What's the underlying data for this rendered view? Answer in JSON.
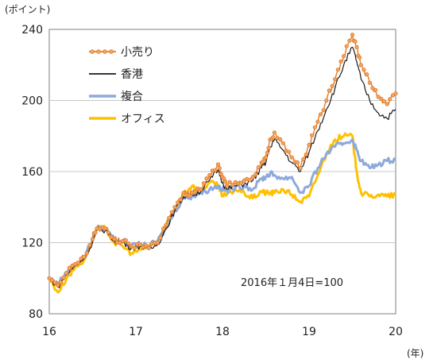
{
  "chart_data": {
    "type": "line",
    "y_unit_label": "(ポイント)",
    "x_unit_label": "(年)",
    "annotation": "2016年１月4日=100",
    "xlim": [
      16,
      20
    ],
    "ylim": [
      80,
      240
    ],
    "x_ticks": [
      "16",
      "17",
      "18",
      "19",
      "20"
    ],
    "y_ticks": [
      "80",
      "120",
      "160",
      "200",
      "240"
    ],
    "grid": "horizontal",
    "legend_position": "top-left",
    "series": [
      {
        "name": "小売り",
        "color": "#E07B28",
        "marker": "circle",
        "points": [
          [
            16.0,
            100
          ],
          [
            16.1,
            96
          ],
          [
            16.2,
            103
          ],
          [
            16.3,
            108
          ],
          [
            16.4,
            112
          ],
          [
            16.5,
            122
          ],
          [
            16.55,
            128
          ],
          [
            16.65,
            128
          ],
          [
            16.75,
            122
          ],
          [
            16.85,
            121
          ],
          [
            16.95,
            118
          ],
          [
            17.05,
            119
          ],
          [
            17.15,
            117
          ],
          [
            17.25,
            120
          ],
          [
            17.35,
            130
          ],
          [
            17.45,
            140
          ],
          [
            17.55,
            148
          ],
          [
            17.65,
            148
          ],
          [
            17.75,
            150
          ],
          [
            17.85,
            158
          ],
          [
            17.95,
            164
          ],
          [
            18.0,
            157
          ],
          [
            18.05,
            152
          ],
          [
            18.15,
            154
          ],
          [
            18.25,
            155
          ],
          [
            18.35,
            157
          ],
          [
            18.45,
            165
          ],
          [
            18.5,
            168
          ],
          [
            18.55,
            178
          ],
          [
            18.6,
            182
          ],
          [
            18.7,
            176
          ],
          [
            18.8,
            168
          ],
          [
            18.9,
            162
          ],
          [
            19.0,
            175
          ],
          [
            19.1,
            188
          ],
          [
            19.2,
            200
          ],
          [
            19.3,
            212
          ],
          [
            19.4,
            225
          ],
          [
            19.5,
            237
          ],
          [
            19.55,
            230
          ],
          [
            19.6,
            220
          ],
          [
            19.7,
            210
          ],
          [
            19.8,
            202
          ],
          [
            19.9,
            198
          ],
          [
            20.0,
            204
          ]
        ]
      },
      {
        "name": "香港",
        "color": "#1a1a1a",
        "marker": "none",
        "points": [
          [
            16.0,
            100
          ],
          [
            16.1,
            95
          ],
          [
            16.2,
            102
          ],
          [
            16.3,
            107
          ],
          [
            16.4,
            111
          ],
          [
            16.5,
            120
          ],
          [
            16.55,
            127
          ],
          [
            16.65,
            127
          ],
          [
            16.75,
            121
          ],
          [
            16.85,
            120
          ],
          [
            16.95,
            117
          ],
          [
            17.05,
            118
          ],
          [
            17.15,
            116
          ],
          [
            17.25,
            119
          ],
          [
            17.35,
            128
          ],
          [
            17.45,
            138
          ],
          [
            17.55,
            146
          ],
          [
            17.65,
            147
          ],
          [
            17.75,
            149
          ],
          [
            17.85,
            155
          ],
          [
            17.95,
            161
          ],
          [
            18.0,
            154
          ],
          [
            18.05,
            150
          ],
          [
            18.15,
            152
          ],
          [
            18.25,
            153
          ],
          [
            18.35,
            155
          ],
          [
            18.45,
            162
          ],
          [
            18.5,
            165
          ],
          [
            18.55,
            174
          ],
          [
            18.6,
            178
          ],
          [
            18.7,
            172
          ],
          [
            18.8,
            165
          ],
          [
            18.9,
            160
          ],
          [
            19.0,
            171
          ],
          [
            19.1,
            183
          ],
          [
            19.2,
            195
          ],
          [
            19.3,
            207
          ],
          [
            19.4,
            220
          ],
          [
            19.5,
            230
          ],
          [
            19.55,
            222
          ],
          [
            19.6,
            212
          ],
          [
            19.7,
            200
          ],
          [
            19.8,
            193
          ],
          [
            19.9,
            190
          ],
          [
            20.0,
            195
          ]
        ]
      },
      {
        "name": "複合",
        "color": "#8EA9DB",
        "marker": "none",
        "points": [
          [
            16.0,
            100
          ],
          [
            16.1,
            97
          ],
          [
            16.2,
            103
          ],
          [
            16.3,
            108
          ],
          [
            16.4,
            111
          ],
          [
            16.5,
            122
          ],
          [
            16.55,
            128
          ],
          [
            16.65,
            128
          ],
          [
            16.75,
            122
          ],
          [
            16.85,
            121
          ],
          [
            16.95,
            118
          ],
          [
            17.05,
            119
          ],
          [
            17.15,
            118
          ],
          [
            17.25,
            121
          ],
          [
            17.35,
            128
          ],
          [
            17.45,
            138
          ],
          [
            17.55,
            145
          ],
          [
            17.65,
            146
          ],
          [
            17.75,
            148
          ],
          [
            17.85,
            150
          ],
          [
            17.95,
            152
          ],
          [
            18.0,
            150
          ],
          [
            18.05,
            149
          ],
          [
            18.15,
            151
          ],
          [
            18.25,
            152
          ],
          [
            18.35,
            150
          ],
          [
            18.45,
            156
          ],
          [
            18.5,
            157
          ],
          [
            18.55,
            159
          ],
          [
            18.6,
            158
          ],
          [
            18.7,
            156
          ],
          [
            18.8,
            157
          ],
          [
            18.9,
            148
          ],
          [
            19.0,
            152
          ],
          [
            19.1,
            162
          ],
          [
            19.2,
            170
          ],
          [
            19.3,
            174
          ],
          [
            19.4,
            176
          ],
          [
            19.5,
            178
          ],
          [
            19.55,
            172
          ],
          [
            19.6,
            166
          ],
          [
            19.7,
            162
          ],
          [
            19.8,
            164
          ],
          [
            19.9,
            166
          ],
          [
            20.0,
            167
          ]
        ]
      },
      {
        "name": "オフィス",
        "color": "#FFC000",
        "marker": "none",
        "points": [
          [
            16.0,
            100
          ],
          [
            16.1,
            92
          ],
          [
            16.2,
            100
          ],
          [
            16.3,
            106
          ],
          [
            16.4,
            110
          ],
          [
            16.5,
            122
          ],
          [
            16.55,
            128
          ],
          [
            16.65,
            128
          ],
          [
            16.75,
            120
          ],
          [
            16.85,
            118
          ],
          [
            16.95,
            114
          ],
          [
            17.05,
            116
          ],
          [
            17.15,
            118
          ],
          [
            17.25,
            121
          ],
          [
            17.35,
            130
          ],
          [
            17.45,
            138
          ],
          [
            17.55,
            148
          ],
          [
            17.65,
            152
          ],
          [
            17.75,
            149
          ],
          [
            17.85,
            154
          ],
          [
            17.95,
            152
          ],
          [
            18.0,
            146
          ],
          [
            18.05,
            147
          ],
          [
            18.15,
            150
          ],
          [
            18.25,
            148
          ],
          [
            18.35,
            145
          ],
          [
            18.45,
            149
          ],
          [
            18.5,
            148
          ],
          [
            18.55,
            148
          ],
          [
            18.6,
            148
          ],
          [
            18.7,
            150
          ],
          [
            18.8,
            147
          ],
          [
            18.9,
            143
          ],
          [
            19.0,
            146
          ],
          [
            19.1,
            158
          ],
          [
            19.2,
            170
          ],
          [
            19.3,
            178
          ],
          [
            19.4,
            180
          ],
          [
            19.5,
            180
          ],
          [
            19.55,
            160
          ],
          [
            19.6,
            148
          ],
          [
            19.7,
            146
          ],
          [
            19.8,
            147
          ],
          [
            19.9,
            146
          ],
          [
            20.0,
            147
          ]
        ]
      }
    ]
  }
}
